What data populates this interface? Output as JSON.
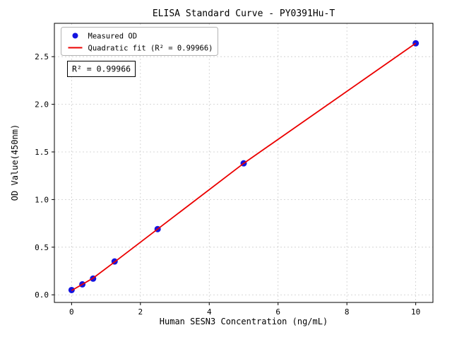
{
  "figure": {
    "title": "ELISA Standard Curve - PY0391Hu-T",
    "annotation": "R² = 0.99966"
  },
  "chart_data": {
    "type": "scatter",
    "title": "ELISA Standard Curve - PY0391Hu-T",
    "xlabel": "Human SESN3 Concentration (ng/mL)",
    "ylabel": "OD Value(450nm)",
    "xlim": [
      -0.5,
      10.5
    ],
    "ylim": [
      -0.08,
      2.85
    ],
    "xticks": [
      0,
      2,
      4,
      6,
      8,
      10
    ],
    "xtick_labels": [
      "0",
      "2",
      "4",
      "6",
      "8",
      "10"
    ],
    "yticks": [
      0,
      0.5,
      1.0,
      1.5,
      2.0,
      2.5
    ],
    "ytick_labels": [
      "0.0",
      "0.5",
      "1.0",
      "1.5",
      "2.0",
      "2.5"
    ],
    "grid": true,
    "legend": {
      "position": "upper-left",
      "entries": [
        {
          "label": "Measured OD",
          "marker": "dot",
          "color": "#1414e0"
        },
        {
          "label": "Quadratic fit (R² = 0.99966)",
          "marker": "line",
          "color": "#eb0000"
        }
      ]
    },
    "annotation": "R² = 0.99966",
    "series": [
      {
        "name": "Measured OD",
        "type": "scatter",
        "color": "#1414e0",
        "x": [
          0,
          0.3125,
          0.625,
          1.25,
          2.5,
          5,
          10
        ],
        "y": [
          0.05,
          0.11,
          0.17,
          0.35,
          0.69,
          1.38,
          2.64
        ]
      },
      {
        "name": "Quadratic fit",
        "type": "line",
        "color": "#eb0000",
        "x": [
          0,
          0.3125,
          0.625,
          1.25,
          2.5,
          5,
          10
        ],
        "y": [
          0.045,
          0.11,
          0.175,
          0.345,
          0.69,
          1.38,
          2.64
        ]
      }
    ]
  }
}
